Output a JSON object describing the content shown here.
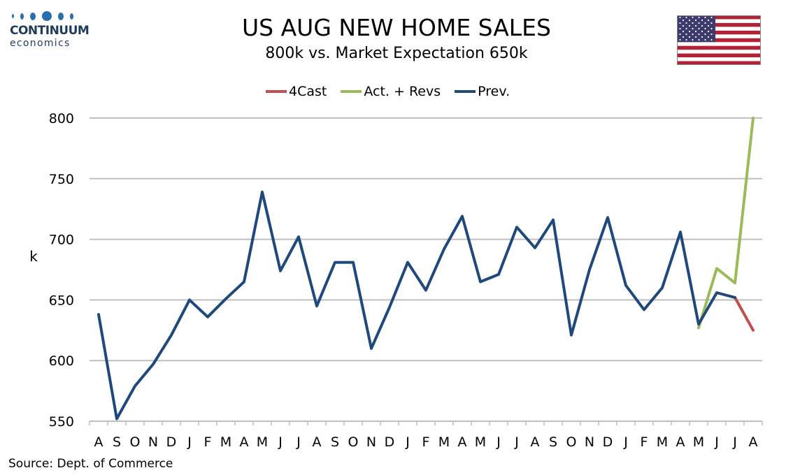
{
  "header": {
    "logo_name": "CONTINUUM",
    "logo_sub": "economics",
    "title": "US AUG NEW HOME SALES",
    "subtitle": "800k vs. Market Expectation 650k",
    "source": "Source: Dept. of Commerce"
  },
  "colors": {
    "4cast": "#c0504d",
    "act": "#9bbb59",
    "prev": "#1f497d",
    "grid": "#bfbfbf"
  },
  "chart_data": {
    "type": "line",
    "title": "US AUG NEW HOME SALES",
    "subtitle": "800k vs. Market Expectation 650k",
    "ylabel": "k",
    "xlabel": "",
    "ylim": [
      550,
      800
    ],
    "yticks": [
      550,
      600,
      650,
      700,
      750,
      800
    ],
    "grid": true,
    "legend_position": "top",
    "categories": [
      "A",
      "S",
      "O",
      "N",
      "D",
      "J",
      "F",
      "M",
      "A",
      "M",
      "J",
      "J",
      "A",
      "S",
      "O",
      "N",
      "D",
      "J",
      "F",
      "M",
      "A",
      "M",
      "J",
      "J",
      "A",
      "S",
      "O",
      "N",
      "D",
      "J",
      "F",
      "M",
      "A",
      "M",
      "J",
      "J",
      "A"
    ],
    "series": [
      {
        "name": "4Cast",
        "color": "#c0504d",
        "values": [
          null,
          null,
          null,
          null,
          null,
          null,
          null,
          null,
          null,
          null,
          null,
          null,
          null,
          null,
          null,
          null,
          null,
          null,
          null,
          null,
          null,
          null,
          null,
          null,
          null,
          null,
          null,
          null,
          null,
          null,
          null,
          null,
          null,
          null,
          null,
          652,
          625
        ]
      },
      {
        "name": "Act. + Revs",
        "color": "#9bbb59",
        "values": [
          null,
          null,
          null,
          null,
          null,
          null,
          null,
          null,
          null,
          null,
          null,
          null,
          null,
          null,
          null,
          null,
          null,
          null,
          null,
          null,
          null,
          null,
          null,
          null,
          null,
          null,
          null,
          null,
          null,
          null,
          null,
          null,
          null,
          627,
          676,
          664,
          800
        ]
      },
      {
        "name": "Prev.",
        "color": "#1f497d",
        "values": [
          638,
          552,
          579,
          597,
          621,
          650,
          636,
          651,
          665,
          739,
          674,
          702,
          645,
          681,
          681,
          610,
          644,
          681,
          658,
          692,
          719,
          665,
          671,
          710,
          693,
          716,
          621,
          675,
          718,
          662,
          642,
          660,
          706,
          630,
          656,
          652,
          null
        ]
      }
    ]
  }
}
